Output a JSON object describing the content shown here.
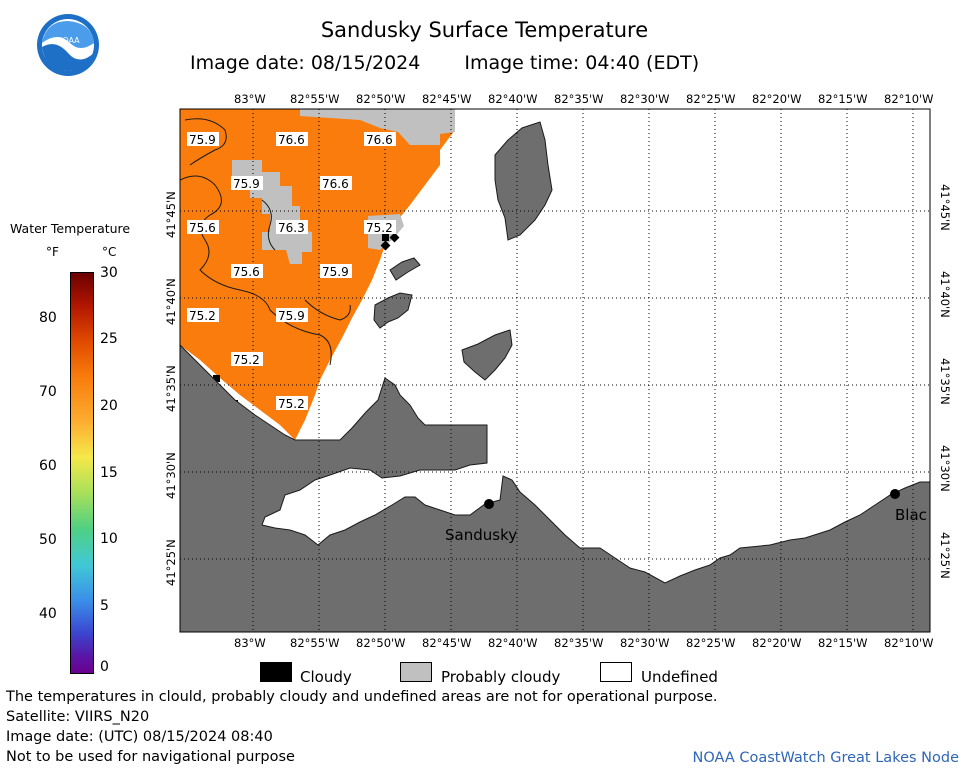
{
  "title": "Sandusky Surface Temperature",
  "image_date": "Image date: 08/15/2024",
  "image_time": "Image time: 04:40 (EDT)",
  "logo_text": "NOAA",
  "scale": {
    "title": "Water Temperature",
    "unit_f": "°F",
    "unit_c": "°C",
    "f_ticks": [
      "80",
      "70",
      "60",
      "50",
      "40"
    ],
    "c_ticks": [
      "30",
      "25",
      "20",
      "15",
      "10",
      "5",
      "0"
    ]
  },
  "lon_labels": [
    "83°W",
    "82°55'W",
    "82°50'W",
    "82°45'W",
    "82°40'W",
    "82°35'W",
    "82°30'W",
    "82°25'W",
    "82°20'W",
    "82°15'W",
    "82°10'W"
  ],
  "lat_labels": [
    "41°45'N",
    "41°40'N",
    "41°35'N",
    "41°30'N",
    "41°25'N"
  ],
  "temps": [
    "75.9",
    "76.6",
    "76.6",
    "75.9",
    "76.6",
    "75.6",
    "76.3",
    "75.2",
    "75.6",
    "75.9",
    "75.2",
    "75.9",
    "75.2",
    "75.2"
  ],
  "places": {
    "sandusky": "Sandusky",
    "blac": "Blac"
  },
  "legend": {
    "cloudy": "Cloudy",
    "probably_cloudy": "Probably cloudy",
    "undefined": "Undefined"
  },
  "footer": {
    "note": "The temperatures in clould, probably cloudy and undefined areas are not for operational purpose.",
    "satellite": "Satellite: VIIRS_N20",
    "utc_date": "Image date: (UTC) 08/15/2024  08:40",
    "nav": "Not to be used for navigational purpose",
    "credit": "NOAA CoastWatch Great Lakes Node"
  },
  "colors": {
    "warm_water": "#f97c0c",
    "land": "#6e6e6e",
    "probably_cloudy": "#c0c0c0",
    "cloudy": "#000000",
    "credit": "#2f66b8"
  }
}
